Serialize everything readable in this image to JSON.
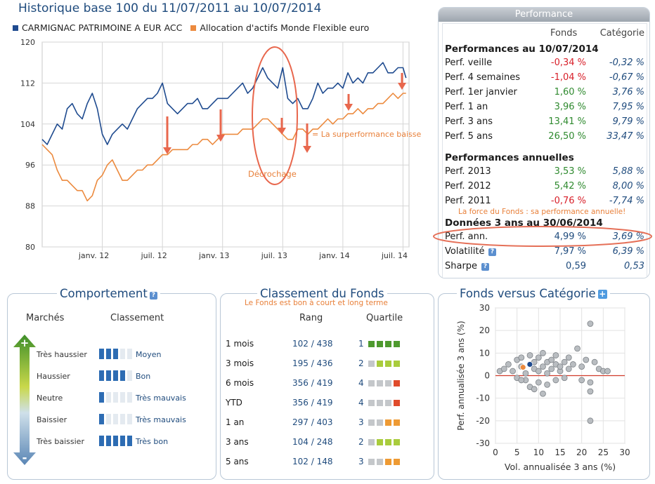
{
  "chart": {
    "title": "Historique base 100 du 11/07/2011 au 10/07/2014",
    "legend": [
      {
        "label": "CARMIGNAC PATRIMOINE A EUR ACC",
        "color": "#1f4b8f"
      },
      {
        "label": "Allocation d'actifs Monde Flexible euro",
        "color": "#ec8a3e"
      }
    ],
    "annotations": {
      "surperformance": "= La surperformance baisse",
      "decrochage": "Décrochage"
    }
  },
  "chart_data": [
    {
      "type": "line",
      "title": "Historique base 100 du 11/07/2011 au 10/07/2014",
      "xlabel": "",
      "ylabel": "",
      "ylim": [
        80,
        120
      ],
      "yticks": [
        80,
        88,
        96,
        104,
        112,
        120
      ],
      "xticks": [
        "janv. 12",
        "juil. 12",
        "janv. 13",
        "juil. 13",
        "janv. 14",
        "juil. 14"
      ],
      "xtick_months": [
        6,
        12,
        18,
        24,
        30,
        36
      ],
      "xlim_months": [
        0,
        36
      ],
      "grid": true,
      "legend_position": "top-left",
      "series": [
        {
          "name": "CARMIGNAC PATRIMOINE A EUR ACC",
          "color": "#1f4b8f",
          "x": [
            0,
            0.5,
            1,
            1.5,
            2,
            2.5,
            3,
            3.5,
            4,
            4.5,
            5,
            5.5,
            6,
            6.5,
            7,
            7.5,
            8,
            8.5,
            9,
            9.5,
            10,
            10.5,
            11,
            11.5,
            12,
            12.5,
            13,
            13.5,
            14,
            14.5,
            15,
            15.5,
            16,
            16.5,
            17,
            17.5,
            18,
            18.5,
            19,
            19.5,
            20,
            20.5,
            21,
            21.5,
            22,
            22.5,
            23,
            23.5,
            24,
            24.5,
            25,
            25.5,
            26,
            26.5,
            27,
            27.5,
            28,
            28.5,
            29,
            29.5,
            30,
            30.5,
            31,
            31.5,
            32,
            32.5,
            33,
            33.5,
            34,
            34.5,
            35,
            35.5,
            36,
            36.3
          ],
          "values": [
            101,
            100,
            102,
            104,
            103,
            107,
            108,
            106,
            105,
            108,
            110,
            107,
            102,
            100,
            102,
            103,
            104,
            103,
            105,
            107,
            108,
            109,
            109,
            110,
            112,
            108,
            107,
            106,
            107,
            108,
            108,
            109,
            107,
            107,
            108,
            109,
            109,
            109,
            110,
            111,
            112,
            110,
            111,
            113,
            115,
            113,
            112,
            111,
            115,
            109,
            108,
            109,
            107,
            107,
            109,
            112,
            110,
            111,
            111,
            112,
            111,
            114,
            112,
            113,
            112,
            114,
            114,
            115,
            116,
            114,
            114,
            115,
            115,
            113
          ]
        },
        {
          "name": "Allocation d'actifs Monde Flexible euro",
          "color": "#ec8a3e",
          "x": [
            0,
            0.5,
            1,
            1.5,
            2,
            2.5,
            3,
            3.5,
            4,
            4.5,
            5,
            5.5,
            6,
            6.5,
            7,
            7.5,
            8,
            8.5,
            9,
            9.5,
            10,
            10.5,
            11,
            11.5,
            12,
            12.5,
            13,
            13.5,
            14,
            14.5,
            15,
            15.5,
            16,
            16.5,
            17,
            17.5,
            18,
            18.5,
            19,
            19.5,
            20,
            20.5,
            21,
            21.5,
            22,
            22.5,
            23,
            23.5,
            24,
            24.5,
            25,
            25.5,
            26,
            26.5,
            27,
            27.5,
            28,
            28.5,
            29,
            29.5,
            30,
            30.5,
            31,
            31.5,
            32,
            32.5,
            33,
            33.5,
            34,
            34.5,
            35,
            35.5,
            36,
            36.3
          ],
          "values": [
            100,
            99,
            98,
            95,
            93,
            93,
            92,
            91,
            91,
            89,
            90,
            93,
            94,
            96,
            97,
            95,
            93,
            93,
            94,
            95,
            95,
            96,
            96,
            97,
            98,
            98,
            99,
            99,
            99,
            99,
            100,
            100,
            101,
            101,
            100,
            101,
            102,
            102,
            102,
            102,
            103,
            103,
            103,
            104,
            105,
            105,
            104,
            103,
            102,
            101,
            101,
            103,
            103,
            102,
            103,
            103,
            104,
            105,
            104,
            105,
            105,
            106,
            106,
            107,
            106,
            107,
            107,
            108,
            108,
            109,
            110,
            109,
            110,
            110
          ]
        }
      ]
    },
    {
      "type": "scatter",
      "title": "Fonds versus Catégorie",
      "xlabel": "Vol. annualisée 3 ans (%)",
      "ylabel": "Perf. annualisée 3 ans (%)",
      "xlim": [
        0,
        30
      ],
      "ylim": [
        -30,
        30
      ],
      "xticks": [
        0,
        5,
        10,
        15,
        20,
        25,
        30
      ],
      "yticks": [
        -30,
        -20,
        -10,
        0,
        10,
        20,
        30
      ],
      "grid": true,
      "series": [
        {
          "name": "Catégorie",
          "color": "#9ea3a8",
          "points": [
            [
              1,
              2
            ],
            [
              2,
              3
            ],
            [
              3,
              5
            ],
            [
              4,
              2
            ],
            [
              5,
              7
            ],
            [
              6,
              4
            ],
            [
              6,
              8
            ],
            [
              7,
              1
            ],
            [
              8,
              5
            ],
            [
              8,
              9
            ],
            [
              9,
              3
            ],
            [
              9,
              6
            ],
            [
              10,
              2
            ],
            [
              10,
              8
            ],
            [
              11,
              4
            ],
            [
              11,
              10
            ],
            [
              12,
              6
            ],
            [
              12,
              1
            ],
            [
              13,
              3
            ],
            [
              13,
              7
            ],
            [
              14,
              5
            ],
            [
              14,
              9
            ],
            [
              15,
              2
            ],
            [
              15,
              4
            ],
            [
              16,
              6
            ],
            [
              16,
              -1
            ],
            [
              17,
              3
            ],
            [
              17,
              8
            ],
            [
              18,
              5
            ],
            [
              19,
              12
            ],
            [
              20,
              4
            ],
            [
              21,
              7
            ],
            [
              22,
              -3
            ],
            [
              23,
              6
            ],
            [
              24,
              3
            ],
            [
              25,
              2
            ],
            [
              26,
              2
            ],
            [
              7,
              -2
            ],
            [
              8,
              -5
            ],
            [
              10,
              -3
            ],
            [
              11,
              -8
            ],
            [
              12,
              -4
            ],
            [
              9,
              -6
            ],
            [
              20,
              -2
            ],
            [
              22,
              -7
            ],
            [
              22,
              23
            ],
            [
              22,
              -20
            ],
            [
              5,
              -1
            ],
            [
              6,
              -2
            ],
            [
              14,
              -2
            ]
          ]
        },
        {
          "name": "Fonds",
          "color": "#1f4b8f",
          "points": [
            [
              7.97,
              4.99
            ]
          ]
        },
        {
          "name": "Catégorie moyenne",
          "color": "#ec8a3e",
          "points": [
            [
              6.39,
              3.69
            ]
          ]
        }
      ]
    }
  ],
  "performance": {
    "header": "Performance",
    "col_fonds": "Fonds",
    "col_categorie": "Catégorie",
    "section1": "Performances au 10/07/2014",
    "rows1": [
      {
        "label": "Perf. veille",
        "fonds": "-0,34 %",
        "categorie": "-0,32 %",
        "sign": "neg"
      },
      {
        "label": "Perf. 4 semaines",
        "fonds": "-1,04 %",
        "categorie": "-0,67 %",
        "sign": "neg"
      },
      {
        "label": "Perf. 1er janvier",
        "fonds": "1,60 %",
        "categorie": "3,76 %",
        "sign": "pos"
      },
      {
        "label": "Perf. 1 an",
        "fonds": "3,96 %",
        "categorie": "7,95 %",
        "sign": "pos"
      },
      {
        "label": "Perf. 3 ans",
        "fonds": "13,41 %",
        "categorie": "9,79 %",
        "sign": "pos"
      },
      {
        "label": "Perf. 5 ans",
        "fonds": "26,50 %",
        "categorie": "33,47 %",
        "sign": "pos"
      }
    ],
    "section2": "Performances annuelles",
    "rows2": [
      {
        "label": "Perf. 2013",
        "fonds": "3,53 %",
        "categorie": "5,88 %",
        "sign": "pos"
      },
      {
        "label": "Perf. 2012",
        "fonds": "5,42 %",
        "categorie": "8,00 %",
        "sign": "pos"
      },
      {
        "label": "Perf. 2011",
        "fonds": "-0,76 %",
        "categorie": "-7,74 %",
        "sign": "neg"
      }
    ],
    "annot": "La force du Fonds : sa performance annuelle!",
    "section3": "Données 3 ans au 30/06/2014",
    "rows3": [
      {
        "label": "Perf. ann.",
        "fonds": "4,99 %",
        "categorie": "3,69 %"
      },
      {
        "label": "Volatilité",
        "fonds": "7,97 %",
        "categorie": "6,39 %"
      },
      {
        "label": "Sharpe",
        "fonds": "0,59",
        "categorie": "0,53"
      }
    ]
  },
  "comportement": {
    "title": "Comportement",
    "col_marches": "Marchés",
    "col_classement": "Classement",
    "rows": [
      {
        "label": "Très haussier",
        "value": "Moyen",
        "level": 3
      },
      {
        "label": "Haussier",
        "value": "Bon",
        "level": 4
      },
      {
        "label": "Neutre",
        "value": "Très mauvais",
        "level": 1
      },
      {
        "label": "Baissier",
        "value": "Très mauvais",
        "level": 1
      },
      {
        "label": "Très baissier",
        "value": "Très bon",
        "level": 5
      }
    ],
    "arrow_top": "+",
    "arrow_bottom": "-"
  },
  "classement": {
    "title": "Classement du Fonds",
    "annot": "Le Fonds est bon à court et long terme",
    "col_rang": "Rang",
    "col_quartile": "Quartile",
    "rows": [
      {
        "period": "1 mois",
        "rang": "102 / 438",
        "quartile": "1",
        "q": 1
      },
      {
        "period": "3 mois",
        "rang": "195 / 436",
        "quartile": "2",
        "q": 2
      },
      {
        "period": "6 mois",
        "rang": "356 / 419",
        "quartile": "4",
        "q": 4
      },
      {
        "period": "YTD",
        "rang": "356 / 419",
        "quartile": "4",
        "q": 4
      },
      {
        "period": "1 an",
        "rang": "297 / 403",
        "quartile": "3",
        "q": 3
      },
      {
        "period": "3 ans",
        "rang": "104 / 248",
        "quartile": "2",
        "q": 2
      },
      {
        "period": "5 ans",
        "rang": "102 / 148",
        "quartile": "3",
        "q": 3
      }
    ],
    "quartile_colors": {
      "1": "#4e9a2e",
      "2": "#a9cc3c",
      "3": "#ee9a33",
      "4": "#e04b2b",
      "off": "#c4c7ca"
    }
  },
  "versus": {
    "title": "Fonds versus Catégorie",
    "plus": "+"
  }
}
